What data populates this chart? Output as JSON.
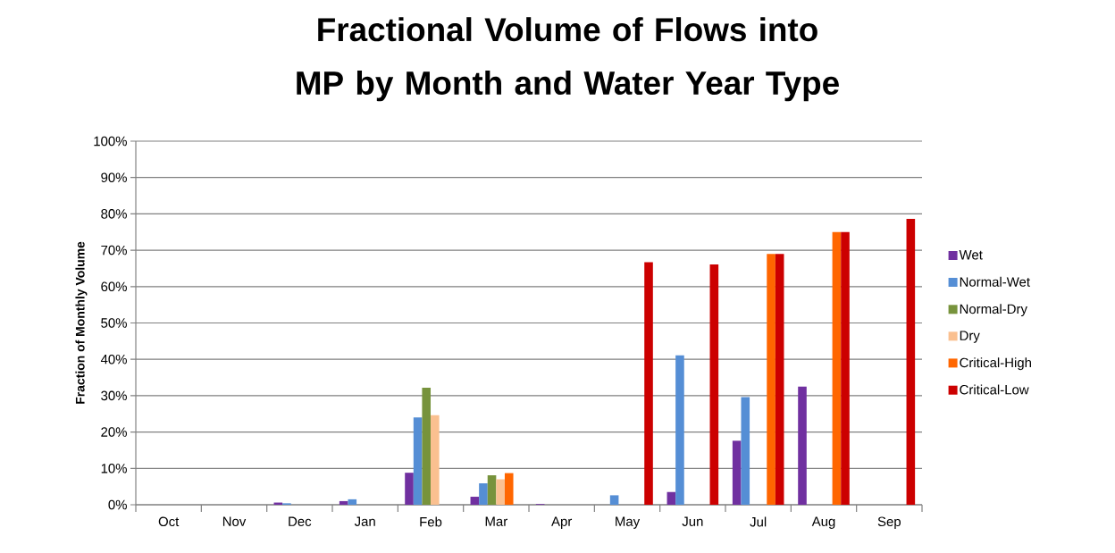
{
  "chart_data": {
    "type": "bar",
    "title": "Fractional Volume of Flows into MP by Month and Water Year Type",
    "ylabel": "Fraction of Monthly Volume",
    "categories": [
      "Oct",
      "Nov",
      "Dec",
      "Jan",
      "Feb",
      "Mar",
      "Apr",
      "May",
      "Jun",
      "Jul",
      "Aug",
      "Sep"
    ],
    "series": [
      {
        "name": "Wet",
        "color": "#7030a0",
        "values": [
          null,
          null,
          0.6,
          1.0,
          8.8,
          2.2,
          0.2,
          null,
          3.5,
          17.6,
          32.5,
          null
        ]
      },
      {
        "name": "Normal-Wet",
        "color": "#558ed5",
        "values": [
          null,
          null,
          0.4,
          1.5,
          24,
          5.9,
          null,
          2.6,
          41.1,
          29.6,
          null,
          null
        ]
      },
      {
        "name": "Normal-Dry",
        "color": "#77933c",
        "values": [
          null,
          null,
          null,
          null,
          32.2,
          8.1,
          null,
          null,
          null,
          null,
          null,
          null
        ]
      },
      {
        "name": "Dry",
        "color": "#fac090",
        "values": [
          null,
          null,
          null,
          null,
          24.6,
          7,
          null,
          null,
          null,
          null,
          null,
          null
        ]
      },
      {
        "name": "Critical-High",
        "color": "#ff6600",
        "values": [
          null,
          null,
          null,
          null,
          null,
          8.7,
          null,
          null,
          null,
          69,
          75,
          null
        ]
      },
      {
        "name": "Critical-Low",
        "color": "#cc0000",
        "values": [
          null,
          null,
          null,
          null,
          null,
          null,
          null,
          66.7,
          66.1,
          69,
          75,
          78.6
        ]
      }
    ],
    "ylim": [
      0,
      100
    ],
    "yticks": [
      {
        "value": 0,
        "label": "0%"
      },
      {
        "value": 10,
        "label": "10%"
      },
      {
        "value": 20,
        "label": "20%"
      },
      {
        "value": 30,
        "label": "30%"
      },
      {
        "value": 40,
        "label": "40%"
      },
      {
        "value": 50,
        "label": "50%"
      },
      {
        "value": 60,
        "label": "60%"
      },
      {
        "value": 70,
        "label": "70%"
      },
      {
        "value": 80,
        "label": "80%"
      },
      {
        "value": 90,
        "label": "90%"
      },
      {
        "value": 100,
        "label": "100%"
      }
    ],
    "grid": "y",
    "legend": "right"
  }
}
